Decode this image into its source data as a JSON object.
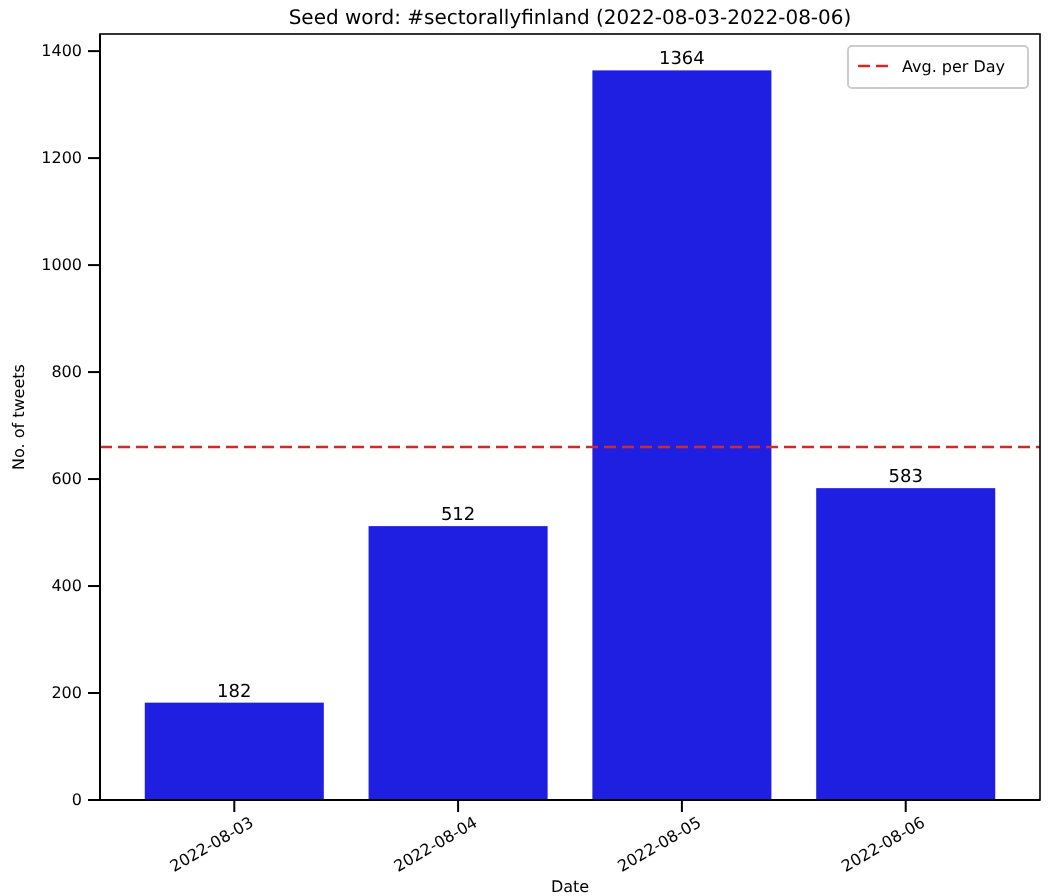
{
  "chart_data": {
    "type": "bar",
    "title": "Seed word: #sectorallyfinland (2022-08-03-2022-08-06)",
    "xlabel": "Date",
    "ylabel": "No. of tweets",
    "categories": [
      "2022-08-03",
      "2022-08-04",
      "2022-08-05",
      "2022-08-06"
    ],
    "values": [
      182,
      512,
      1364,
      583
    ],
    "color": "#1f1fe1",
    "data_labels": true,
    "ylim": [
      0,
      1432
    ],
    "yticks": [
      0,
      200,
      400,
      600,
      800,
      1000,
      1200,
      1400
    ],
    "ref_lines": [
      {
        "axis": "y",
        "value": 660,
        "label": "Avg. per Day",
        "color": "#d62728",
        "line_style": "dashed"
      }
    ],
    "legend": "top right"
  }
}
